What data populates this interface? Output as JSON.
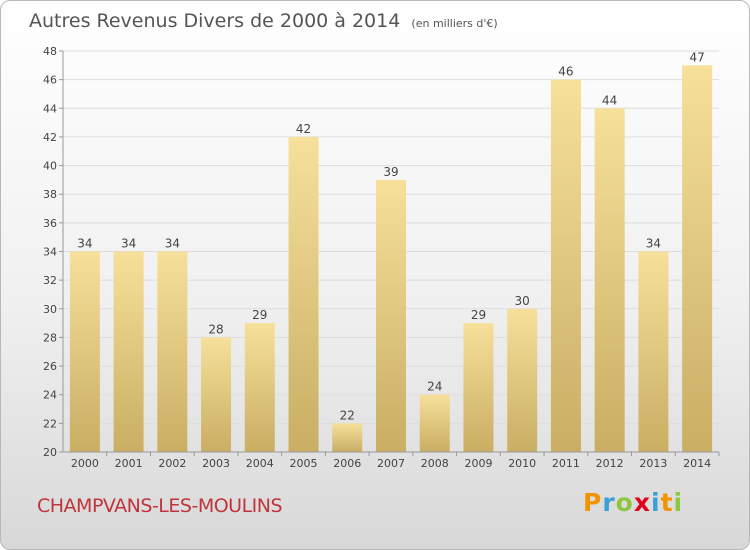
{
  "title": "Autres Revenus Divers de 2000 à 2014",
  "unit_note": "(en milliers d'€)",
  "town": "CHAMPVANS-LES-MOULINS",
  "logo": {
    "letters": [
      "P",
      "r",
      "o",
      "x",
      "i",
      "t",
      "i"
    ],
    "colors": [
      "#f29400",
      "#3aa0d8",
      "#8dc63f",
      "#e2001a",
      "#3aa0d8",
      "#f29400",
      "#8dc63f"
    ]
  },
  "chart_data": {
    "type": "bar",
    "categories": [
      "2000",
      "2001",
      "2002",
      "2003",
      "2004",
      "2005",
      "2006",
      "2007",
      "2008",
      "2009",
      "2010",
      "2011",
      "2012",
      "2013",
      "2014"
    ],
    "values": [
      34,
      34,
      34,
      28,
      29,
      42,
      22,
      39,
      24,
      29,
      30,
      46,
      44,
      34,
      47
    ],
    "ylim": [
      20,
      48
    ],
    "yticks": [
      20,
      22,
      24,
      26,
      28,
      30,
      32,
      34,
      36,
      38,
      40,
      42,
      44,
      46,
      48
    ],
    "grid": true,
    "colors": {
      "bar_light": "#f6e09a",
      "bar_dark": "#c9ae63",
      "grid": "#dddddd",
      "axis": "#999999"
    }
  }
}
